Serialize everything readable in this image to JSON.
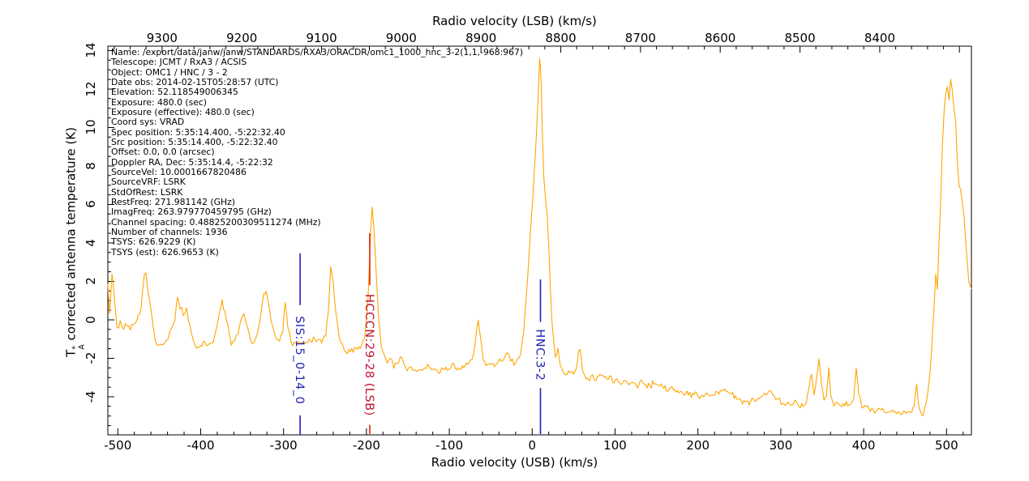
{
  "chart_data": {
    "type": "line",
    "title": "",
    "top_axis": {
      "label": "Radio velocity (LSB) (km/s)",
      "range_left_to_right": [
        9368,
        8285
      ],
      "major_ticks": [
        9300,
        9200,
        9100,
        9000,
        8900,
        8800,
        8700,
        8600,
        8500,
        8400
      ],
      "minor_tick_step": 20
    },
    "bottom_axis": {
      "label": "Radio velocity (USB) (km/s)",
      "range": [
        -512,
        530
      ],
      "major_ticks": [
        -500,
        -400,
        -300,
        -200,
        -100,
        0,
        100,
        200,
        300,
        400,
        500
      ],
      "minor_tick_step": 20
    },
    "y_axis": {
      "label": "T_A* corrected antenna temperature (K)",
      "label_parts": {
        "symbol": "T",
        "superscript": "*",
        "subscript": "A",
        "text": "corrected antenna temperature (K)"
      },
      "range": [
        -5.98,
        14.23
      ],
      "major_ticks": [
        -4,
        -2,
        0,
        2,
        4,
        6,
        8,
        10,
        12,
        14
      ],
      "minor_tick_step": 0.5
    },
    "grid": false,
    "line_color": "#ffa500",
    "noise_sigma": 0.13,
    "line_markers": [
      {
        "label": "SIS:15_0-14_0",
        "velocity_usb": -280,
        "line_top_k": 3.45,
        "label_center_k": -2.1,
        "line_color": "#2222b4",
        "text_color": "#2222b4"
      },
      {
        "label": "HCCCN:29-28 (LSB)",
        "velocity_usb": -196,
        "line_top_k": 4.5,
        "label_center_k": -1.83,
        "line_color": "#dd2200",
        "text_color": "#c01030"
      },
      {
        "label": "HNC:3-2",
        "velocity_usb": 10,
        "line_top_k": 2.1,
        "label_center_k": -1.83,
        "line_color": "#2222b4",
        "text_color": "#2222b4"
      }
    ],
    "spectrum_anchor_points": [
      [
        -512,
        1.9
      ],
      [
        -510,
        0.3
      ],
      [
        -507,
        2.4
      ],
      [
        -504,
        1.0
      ],
      [
        -501,
        -0.4
      ],
      [
        -497,
        -0.2
      ],
      [
        -493,
        -0.5
      ],
      [
        -489,
        -0.2
      ],
      [
        -485,
        -0.4
      ],
      [
        -481,
        -0.3
      ],
      [
        -477,
        -0.1
      ],
      [
        -472,
        0.6
      ],
      [
        -468,
        2.3
      ],
      [
        -466,
        2.5
      ],
      [
        -463,
        1.4
      ],
      [
        -459,
        0.1
      ],
      [
        -455,
        -0.9
      ],
      [
        -451,
        -1.4
      ],
      [
        -447,
        -1.2
      ],
      [
        -443,
        -1.2
      ],
      [
        -439,
        -0.9
      ],
      [
        -435,
        -0.5
      ],
      [
        -431,
        0.1
      ],
      [
        -428,
        1.2
      ],
      [
        -425,
        0.7
      ],
      [
        -421,
        0.3
      ],
      [
        -417,
        0.5
      ],
      [
        -413,
        -0.3
      ],
      [
        -409,
        -1.1
      ],
      [
        -405,
        -1.5
      ],
      [
        -400,
        -1.3
      ],
      [
        -395,
        -1.2
      ],
      [
        -390,
        -1.4
      ],
      [
        -385,
        -1.1
      ],
      [
        -381,
        -0.5
      ],
      [
        -377,
        0.4
      ],
      [
        -374,
        1.0
      ],
      [
        -371,
        0.4
      ],
      [
        -367,
        -0.5
      ],
      [
        -363,
        -1.2
      ],
      [
        -359,
        -1.1
      ],
      [
        -355,
        -0.7
      ],
      [
        -351,
        0.1
      ],
      [
        -348,
        0.4
      ],
      [
        -344,
        -0.3
      ],
      [
        -340,
        -1.0
      ],
      [
        -336,
        -1.3
      ],
      [
        -332,
        -0.8
      ],
      [
        -328,
        0.2
      ],
      [
        -324,
        1.3
      ],
      [
        -321,
        1.5
      ],
      [
        -317,
        0.5
      ],
      [
        -313,
        -0.5
      ],
      [
        -309,
        -1.0
      ],
      [
        -305,
        -1.1
      ],
      [
        -301,
        -0.6
      ],
      [
        -298,
        1.0
      ],
      [
        -295,
        -0.3
      ],
      [
        -291,
        -1.2
      ],
      [
        -287,
        -1.3
      ],
      [
        -283,
        -1.2
      ],
      [
        -279,
        -1.3
      ],
      [
        -274,
        -1.2
      ],
      [
        -269,
        -1.1
      ],
      [
        -264,
        -1.0
      ],
      [
        -259,
        -1.0
      ],
      [
        -254,
        -1.1
      ],
      [
        -249,
        -0.8
      ],
      [
        -246,
        0.4
      ],
      [
        -243,
        2.7
      ],
      [
        -240,
        1.9
      ],
      [
        -237,
        0.4
      ],
      [
        -233,
        -0.8
      ],
      [
        -229,
        -1.4
      ],
      [
        -225,
        -1.7
      ],
      [
        -221,
        -1.6
      ],
      [
        -216,
        -1.6
      ],
      [
        -211,
        -1.5
      ],
      [
        -206,
        -1.4
      ],
      [
        -202,
        -0.9
      ],
      [
        -198,
        1.2
      ],
      [
        -195,
        4.6
      ],
      [
        -193,
        5.8
      ],
      [
        -191,
        4.8
      ],
      [
        -188,
        2.2
      ],
      [
        -185,
        0.0
      ],
      [
        -182,
        -1.3
      ],
      [
        -179,
        -1.9
      ],
      [
        -175,
        -2.2
      ],
      [
        -171,
        -2.0
      ],
      [
        -167,
        -2.4
      ],
      [
        -163,
        -2.3
      ],
      [
        -159,
        -1.9
      ],
      [
        -155,
        -2.3
      ],
      [
        -151,
        -2.6
      ],
      [
        -146,
        -2.5
      ],
      [
        -141,
        -2.7
      ],
      [
        -136,
        -2.5
      ],
      [
        -131,
        -2.6
      ],
      [
        -126,
        -2.4
      ],
      [
        -121,
        -2.5
      ],
      [
        -116,
        -2.7
      ],
      [
        -111,
        -2.6
      ],
      [
        -106,
        -2.5
      ],
      [
        -101,
        -2.6
      ],
      [
        -96,
        -2.4
      ],
      [
        -91,
        -2.5
      ],
      [
        -86,
        -2.6
      ],
      [
        -81,
        -2.4
      ],
      [
        -76,
        -2.3
      ],
      [
        -71,
        -1.9
      ],
      [
        -67,
        -0.6
      ],
      [
        -65,
        0.0
      ],
      [
        -62,
        -1.1
      ],
      [
        -59,
        -2.1
      ],
      [
        -54,
        -2.4
      ],
      [
        -49,
        -2.3
      ],
      [
        -44,
        -2.4
      ],
      [
        -39,
        -2.1
      ],
      [
        -34,
        -2.0
      ],
      [
        -30,
        -1.7
      ],
      [
        -26,
        -2.1
      ],
      [
        -22,
        -2.3
      ],
      [
        -18,
        -2.2
      ],
      [
        -14,
        -1.7
      ],
      [
        -10,
        -0.4
      ],
      [
        -7,
        1.2
      ],
      [
        -4,
        3.2
      ],
      [
        -1,
        5.2
      ],
      [
        2,
        7.2
      ],
      [
        5,
        9.6
      ],
      [
        7,
        11.5
      ],
      [
        9,
        13.5
      ],
      [
        10,
        13.2
      ],
      [
        11,
        12.2
      ],
      [
        12,
        10.0
      ],
      [
        14,
        7.5
      ],
      [
        16,
        6.3
      ],
      [
        18,
        5.6
      ],
      [
        20,
        3.8
      ],
      [
        22,
        1.6
      ],
      [
        24,
        -0.2
      ],
      [
        26,
        -1.2
      ],
      [
        28,
        -1.9
      ],
      [
        31,
        -1.6
      ],
      [
        34,
        -2.3
      ],
      [
        38,
        -2.7
      ],
      [
        42,
        -2.8
      ],
      [
        46,
        -2.7
      ],
      [
        50,
        -2.9
      ],
      [
        53,
        -2.7
      ],
      [
        56,
        -1.6
      ],
      [
        58,
        -1.5
      ],
      [
        61,
        -2.7
      ],
      [
        65,
        -3.0
      ],
      [
        69,
        -3.1
      ],
      [
        73,
        -3.0
      ],
      [
        77,
        -3.1
      ],
      [
        82,
        -2.9
      ],
      [
        87,
        -3.0
      ],
      [
        92,
        -3.0
      ],
      [
        97,
        -3.1
      ],
      [
        102,
        -3.2
      ],
      [
        107,
        -3.3
      ],
      [
        112,
        -3.2
      ],
      [
        117,
        -3.4
      ],
      [
        122,
        -3.3
      ],
      [
        127,
        -3.4
      ],
      [
        132,
        -3.2
      ],
      [
        137,
        -3.5
      ],
      [
        142,
        -3.4
      ],
      [
        147,
        -3.3
      ],
      [
        152,
        -3.3
      ],
      [
        157,
        -3.4
      ],
      [
        162,
        -3.6
      ],
      [
        167,
        -3.5
      ],
      [
        172,
        -3.7
      ],
      [
        177,
        -3.6
      ],
      [
        182,
        -3.8
      ],
      [
        187,
        -3.7
      ],
      [
        192,
        -3.9
      ],
      [
        197,
        -3.8
      ],
      [
        202,
        -4.0
      ],
      [
        207,
        -3.9
      ],
      [
        212,
        -4.0
      ],
      [
        217,
        -3.9
      ],
      [
        222,
        -3.8
      ],
      [
        227,
        -3.7
      ],
      [
        232,
        -3.6
      ],
      [
        237,
        -3.7
      ],
      [
        242,
        -3.9
      ],
      [
        247,
        -4.1
      ],
      [
        252,
        -4.2
      ],
      [
        257,
        -4.2
      ],
      [
        262,
        -4.3
      ],
      [
        267,
        -4.2
      ],
      [
        272,
        -4.1
      ],
      [
        277,
        -4.0
      ],
      [
        282,
        -3.8
      ],
      [
        287,
        -3.7
      ],
      [
        292,
        -3.9
      ],
      [
        297,
        -4.2
      ],
      [
        302,
        -4.3
      ],
      [
        307,
        -4.3
      ],
      [
        312,
        -4.4
      ],
      [
        317,
        -4.3
      ],
      [
        322,
        -4.4
      ],
      [
        327,
        -4.5
      ],
      [
        331,
        -4.3
      ],
      [
        334,
        -3.6
      ],
      [
        337,
        -2.8
      ],
      [
        340,
        -4.0
      ],
      [
        343,
        -3.2
      ],
      [
        346,
        -1.9
      ],
      [
        349,
        -3.3
      ],
      [
        352,
        -4.2
      ],
      [
        355,
        -4.0
      ],
      [
        358,
        -2.6
      ],
      [
        360,
        -3.8
      ],
      [
        364,
        -4.4
      ],
      [
        369,
        -4.3
      ],
      [
        374,
        -4.5
      ],
      [
        379,
        -4.4
      ],
      [
        384,
        -4.5
      ],
      [
        388,
        -4.1
      ],
      [
        391,
        -2.5
      ],
      [
        394,
        -3.7
      ],
      [
        398,
        -4.6
      ],
      [
        403,
        -4.5
      ],
      [
        408,
        -4.6
      ],
      [
        413,
        -4.7
      ],
      [
        418,
        -4.6
      ],
      [
        423,
        -4.7
      ],
      [
        428,
        -4.8
      ],
      [
        433,
        -4.7
      ],
      [
        438,
        -4.8
      ],
      [
        443,
        -4.9
      ],
      [
        448,
        -4.8
      ],
      [
        453,
        -4.9
      ],
      [
        458,
        -4.8
      ],
      [
        461,
        -4.5
      ],
      [
        464,
        -3.4
      ],
      [
        467,
        -4.6
      ],
      [
        470,
        -5.0
      ],
      [
        473,
        -4.7
      ],
      [
        476,
        -4.1
      ],
      [
        479,
        -3.2
      ],
      [
        482,
        -1.6
      ],
      [
        485,
        0.8
      ],
      [
        487,
        2.4
      ],
      [
        489,
        1.6
      ],
      [
        491,
        4.2
      ],
      [
        493,
        6.5
      ],
      [
        495,
        9.0
      ],
      [
        497,
        10.8
      ],
      [
        499,
        11.8
      ],
      [
        501,
        12.1
      ],
      [
        503,
        11.4
      ],
      [
        505,
        12.5
      ],
      [
        507,
        11.9
      ],
      [
        509,
        10.9
      ],
      [
        511,
        10.5
      ],
      [
        513,
        8.2
      ],
      [
        515,
        7.1
      ],
      [
        517,
        6.8
      ],
      [
        519,
        6.2
      ],
      [
        521,
        5.4
      ],
      [
        523,
        4.2
      ],
      [
        525,
        3.0
      ],
      [
        527,
        2.0
      ],
      [
        529,
        1.7
      ],
      [
        530,
        1.6
      ]
    ]
  },
  "metadata_overlay": {
    "lines": [
      "Name: /export/data/janw/janw/STANDARDS/RXA3/ORACDR/omc1_1000_hnc_3-2(1,1,-968:967)",
      "Telescope: JCMT / RxA3 / ACSIS",
      "Object: OMC1 / HNC / 3  - 2",
      "Date obs: 2014-02-15T05:28:57 (UTC)",
      "Elevation: 52.118549006345",
      "Exposure: 480.0 (sec)",
      "Exposure (effective): 480.0 (sec)",
      "Coord sys: VRAD",
      "Spec position: 5:35:14.400, -5:22:32.40",
      "Src position: 5:35:14.400, -5:22:32.40",
      "Offset: 0.0, 0.0 (arcsec)",
      "Doppler RA, Dec: 5:35:14.4, -5:22:32",
      "SourceVel: 10.0001667820486",
      "SourceVRF: LSRK",
      "StdOfRest: LSRK",
      "RestFreq: 271.981142 (GHz)",
      "ImagFreq: 263.979770459795 (GHz)",
      "Channel spacing: 0.48825200309511274 (MHz)",
      "Number of channels: 1936",
      "TSYS: 626.9229 (K)",
      "TSYS (est): 626.9653 (K)"
    ]
  }
}
